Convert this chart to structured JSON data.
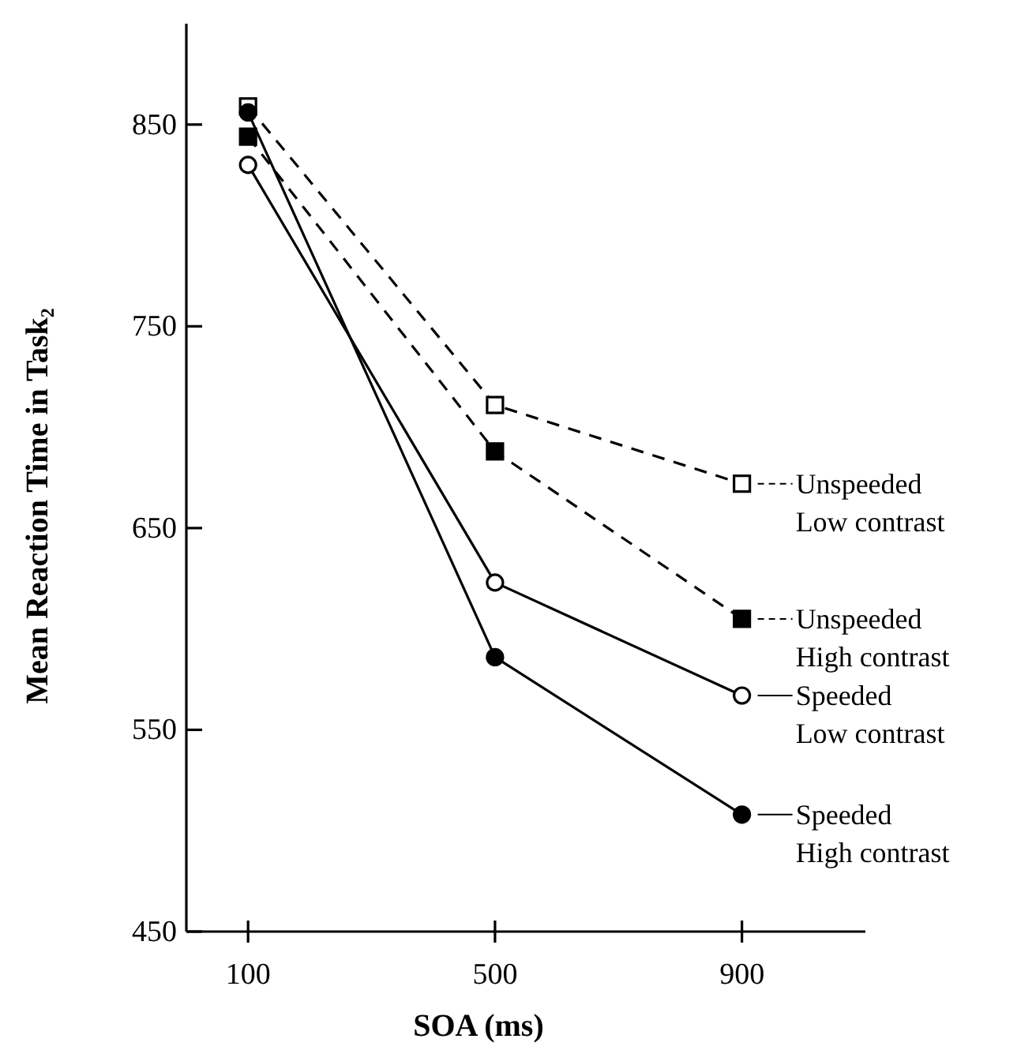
{
  "chart_data": {
    "type": "line",
    "xlabel": "SOA (ms)",
    "ylabel": "Mean Reaction Time in Task₂",
    "x": [
      100,
      500,
      900
    ],
    "xlim": [
      0,
      1100
    ],
    "xticks": [
      100,
      500,
      900
    ],
    "ylim": [
      450,
      900
    ],
    "yticks": [
      450,
      550,
      650,
      750,
      850
    ],
    "grid": false,
    "legend": "right",
    "series": [
      {
        "name": "Unspeeded Low contrast",
        "color": "#000000",
        "marker": "square",
        "colors": [
          "#ffffff",
          "#ffffff",
          "#ffffff"
        ],
        "line_style": "dashed",
        "values": [
          859,
          711,
          672
        ]
      },
      {
        "name": "Unspeeded High contrast",
        "color": "#000000",
        "marker": "square",
        "colors": [
          "#000000",
          "#000000",
          "#000000"
        ],
        "line_style": "dashed",
        "values": [
          844,
          688,
          605
        ]
      },
      {
        "name": "Speeded Low contrast",
        "color": "#000000",
        "marker": "circle",
        "colors": [
          "#ffffff",
          "#ffffff",
          "#ffffff"
        ],
        "line_style": "solid",
        "values": [
          830,
          623,
          567
        ]
      },
      {
        "name": "Speeded High contrast",
        "color": "#000000",
        "marker": "circle",
        "colors": [
          "#000000",
          "#000000",
          "#000000"
        ],
        "line_style": "solid",
        "values": [
          856,
          586,
          508
        ]
      }
    ]
  }
}
